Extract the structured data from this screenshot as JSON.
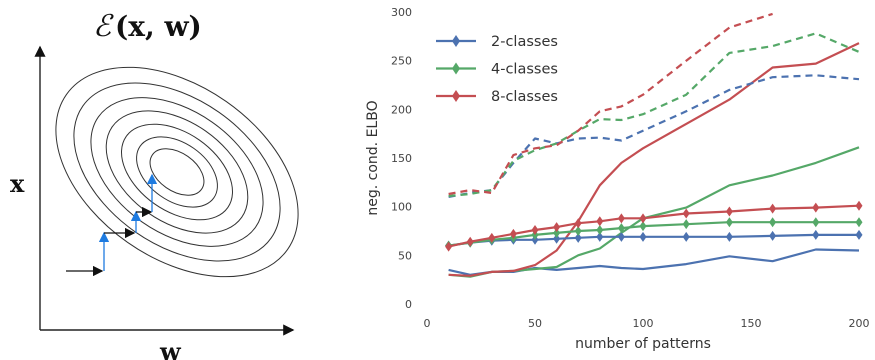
{
  "colors": {
    "blue": "#4c72b0",
    "green": "#55a868",
    "red": "#c44e52",
    "axis": "#222222",
    "contour": "#333333"
  },
  "diagram": {
    "title_calligraphic": "ℰ",
    "title_args": "(x, w)",
    "y_label": "x",
    "x_label": "w"
  },
  "chart_data": {
    "type": "line",
    "xlabel": "number of patterns",
    "ylabel": "neg. cond. ELBO",
    "xlim": [
      0,
      200
    ],
    "ylim": [
      0,
      300
    ],
    "xticks": [
      0,
      50,
      100,
      150,
      200
    ],
    "yticks": [
      0,
      50,
      100,
      150,
      200,
      250,
      300
    ],
    "grid": false,
    "legend_position": "top-left",
    "legend": [
      {
        "label": "2-classes",
        "color": "#4c72b0"
      },
      {
        "label": "4-classes",
        "color": "#55a868"
      },
      {
        "label": "8-classes",
        "color": "#c44e52"
      }
    ],
    "series": [
      {
        "name": "2-classes",
        "color": "#4c72b0",
        "style": "solid-marker",
        "x": [
          10,
          20,
          30,
          40,
          50,
          60,
          70,
          80,
          90,
          100,
          120,
          140,
          160,
          180,
          200
        ],
        "y": [
          60,
          63,
          65,
          66,
          66,
          67,
          68,
          69,
          69,
          69,
          69,
          69,
          70,
          71,
          71
        ]
      },
      {
        "name": "4-classes",
        "color": "#55a868",
        "style": "solid-marker",
        "x": [
          10,
          20,
          30,
          40,
          50,
          60,
          70,
          80,
          90,
          100,
          120,
          140,
          160,
          180,
          200
        ],
        "y": [
          60,
          63,
          66,
          68,
          71,
          73,
          75,
          76,
          78,
          80,
          82,
          84,
          84,
          84,
          84
        ]
      },
      {
        "name": "8-classes",
        "color": "#c44e52",
        "style": "solid-marker",
        "x": [
          10,
          20,
          30,
          40,
          50,
          60,
          70,
          80,
          90,
          100,
          120,
          140,
          160,
          180,
          200
        ],
        "y": [
          59,
          64,
          68,
          72,
          76,
          79,
          83,
          85,
          88,
          88,
          93,
          95,
          98,
          99,
          101
        ]
      },
      {
        "color": "#4c72b0",
        "style": "solid",
        "x": [
          10,
          20,
          30,
          40,
          50,
          60,
          70,
          80,
          90,
          100,
          120,
          140,
          160,
          180,
          200
        ],
        "y": [
          35,
          30,
          33,
          33,
          37,
          35,
          37,
          39,
          37,
          36,
          41,
          49,
          44,
          56,
          55
        ]
      },
      {
        "color": "#55a868",
        "style": "solid",
        "x": [
          10,
          20,
          30,
          40,
          50,
          60,
          70,
          80,
          90,
          100,
          120,
          140,
          160,
          180,
          200
        ],
        "y": [
          30,
          28,
          33,
          34,
          36,
          38,
          50,
          57,
          73,
          88,
          99,
          122,
          132,
          145,
          161
        ]
      },
      {
        "color": "#c44e52",
        "style": "solid",
        "x": [
          10,
          20,
          30,
          40,
          50,
          60,
          70,
          80,
          90,
          100,
          120,
          140,
          160,
          180,
          200
        ],
        "y": [
          30,
          29,
          33,
          34,
          40,
          55,
          85,
          122,
          145,
          160,
          185,
          210,
          243,
          247,
          268
        ]
      },
      {
        "color": "#4c72b0",
        "style": "dashed",
        "x": [
          10,
          20,
          30,
          40,
          50,
          60,
          70,
          80,
          90,
          100,
          120,
          140,
          160,
          180,
          200
        ],
        "y": [
          110,
          114,
          117,
          145,
          170,
          165,
          170,
          171,
          168,
          178,
          198,
          220,
          233,
          235,
          231
        ]
      },
      {
        "color": "#55a868",
        "style": "dashed",
        "x": [
          10,
          20,
          30,
          40,
          50,
          60,
          70,
          80,
          90,
          100,
          120,
          140,
          160,
          180,
          200
        ],
        "y": [
          111,
          113,
          117,
          147,
          158,
          165,
          178,
          190,
          189,
          195,
          215,
          258,
          265,
          278,
          259
        ]
      },
      {
        "color": "#c44e52",
        "style": "dashed",
        "x": [
          10,
          20,
          30,
          40,
          50,
          60,
          70,
          80,
          90,
          100,
          120,
          140,
          160
        ],
        "y": [
          113,
          117,
          114,
          153,
          160,
          163,
          178,
          198,
          203,
          215,
          250,
          284,
          298
        ]
      }
    ]
  }
}
